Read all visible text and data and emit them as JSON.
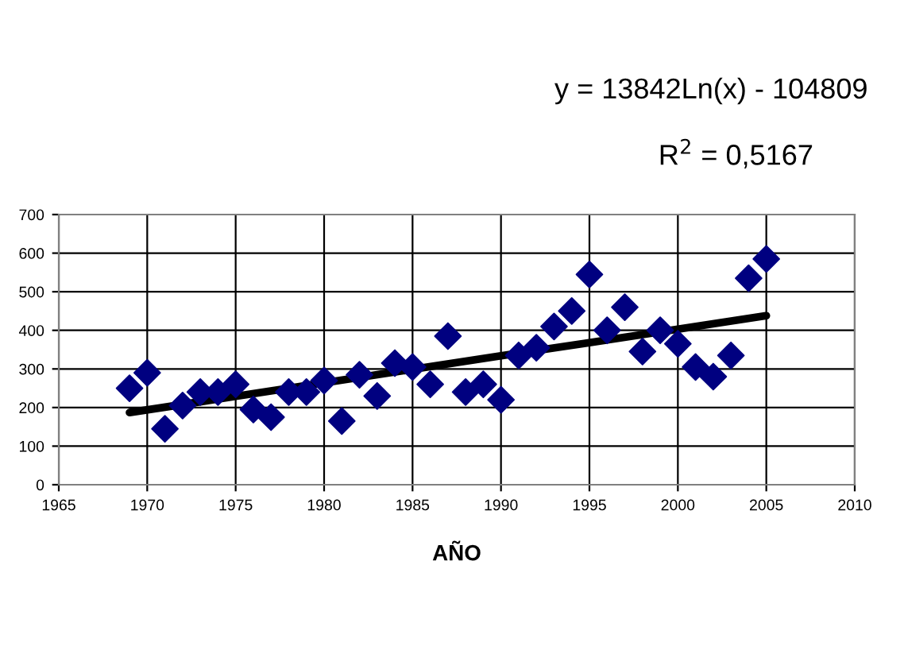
{
  "chart_data": {
    "type": "scatter",
    "xlabel": "AÑO",
    "annotations": [
      "y = 13842Ln(x) - 104809",
      "R$^{2}$ = 0,5167"
    ],
    "x": [
      1969,
      1970,
      1971,
      1972,
      1973,
      1974,
      1975,
      1976,
      1977,
      1978,
      1979,
      1980,
      1981,
      1982,
      1983,
      1984,
      1985,
      1986,
      1987,
      1988,
      1989,
      1990,
      1991,
      1992,
      1993,
      1994,
      1995,
      1996,
      1997,
      1998,
      1999,
      2000,
      2001,
      2002,
      2003,
      2004,
      2005
    ],
    "series": [
      {
        "color": "#000080",
        "marker": "diamond",
        "values": [
          250,
          290,
          145,
          205,
          240,
          240,
          260,
          195,
          175,
          240,
          240,
          270,
          165,
          285,
          230,
          315,
          305,
          260,
          385,
          240,
          260,
          220,
          335,
          355,
          410,
          450,
          545,
          400,
          460,
          345,
          400,
          365,
          305,
          280,
          335,
          535,
          585
        ]
      },
      {
        "type": "line",
        "color": "#000000",
        "marker": "none",
        "line_style": "solid",
        "x": [
          1969,
          1975,
          1980,
          1985,
          1990,
          1995,
          2000,
          2005
        ],
        "values": [
          187,
          229,
          264,
          299,
          334,
          368,
          403,
          438
        ]
      }
    ],
    "xlim": [
      1965,
      2010
    ],
    "xticks": [
      1965,
      1970,
      1975,
      1980,
      1985,
      1990,
      1995,
      2000,
      2005,
      2010
    ],
    "ylim": [
      0,
      700
    ],
    "yticks": [
      0,
      100,
      200,
      300,
      400,
      500,
      600,
      700
    ],
    "grid": true,
    "legend": false
  }
}
